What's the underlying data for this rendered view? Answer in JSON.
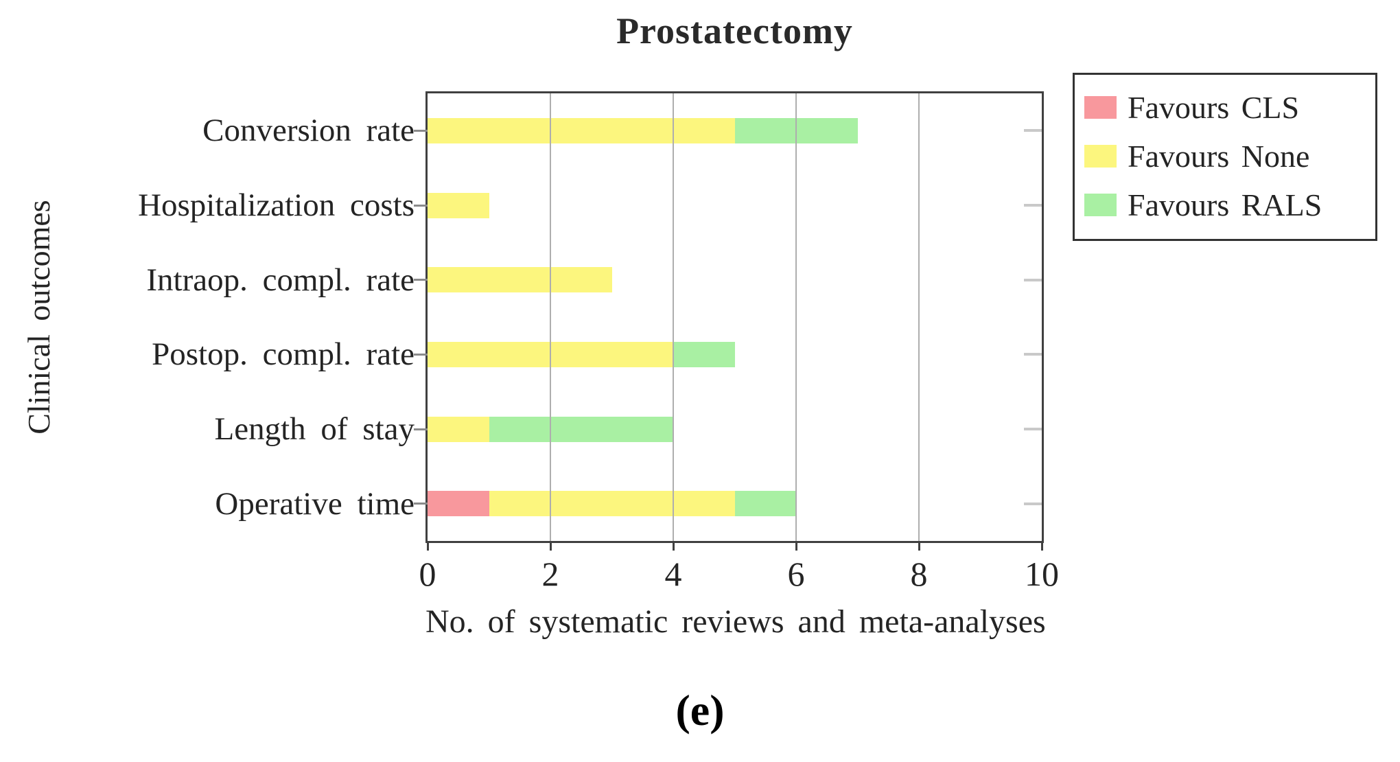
{
  "chart_data": {
    "type": "bar",
    "orientation": "horizontal-stacked",
    "title": "Prostatectomy",
    "xlabel": "No. of systematic reviews and meta-analyses",
    "ylabel": "Clinical outcomes",
    "caption": "(e)",
    "categories": [
      "Conversion rate",
      "Hospitalization costs",
      "Intraop. compl. rate",
      "Postop. compl. rate",
      "Length of stay",
      "Operative time"
    ],
    "series": [
      {
        "name": "Favours CLS",
        "color": "#f8989d",
        "values": [
          0,
          0,
          0,
          0,
          0,
          1
        ]
      },
      {
        "name": "Favours None",
        "color": "#fcf67e",
        "values": [
          5,
          1,
          3,
          4,
          1,
          4
        ]
      },
      {
        "name": "Favours RALS",
        "color": "#a9f0a3",
        "values": [
          2,
          0,
          0,
          1,
          3,
          1
        ]
      }
    ],
    "xlim": [
      0,
      10
    ],
    "xticks": [
      0,
      2,
      4,
      6,
      8,
      10
    ],
    "grid": "vertical, drawn on top of bars",
    "legend_position": "outside-top-right"
  }
}
